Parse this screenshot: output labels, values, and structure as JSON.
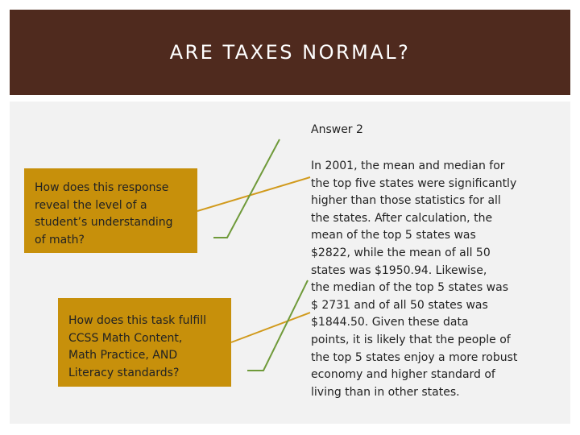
{
  "header": {
    "title": "ARE TAXES NORMAL?"
  },
  "answer": {
    "title": "Answer 2",
    "body": "In 2001, the mean and median for\nthe top five states were significantly\nhigher than those statistics for all\nthe states.   After calculation, the\nmean of the top 5 states was\n$2822, while the mean of all 50\nstates was $1950.94.   Likewise,\nthe median of the top 5 states was\n$ 2731 and of all 50 states was\n$1844.50.   Given these data\npoints, it is likely that the people of\nthe top 5 states enjoy a more robust\neconomy and higher standard of\nliving than in other states."
  },
  "questions": [
    {
      "text": "How does this response\nreveal the level of a\nstudent’s understanding\nof math?"
    },
    {
      "text": "How does this task fulfill\nCCSS Math Content,\nMath Practice, AND\nLiteracy standards?"
    }
  ],
  "colors": {
    "title_bar": "#4f2a1e",
    "question_box": "#c7900b",
    "connector_gold": "#d19a1c",
    "connector_green": "#6f9a3a"
  }
}
